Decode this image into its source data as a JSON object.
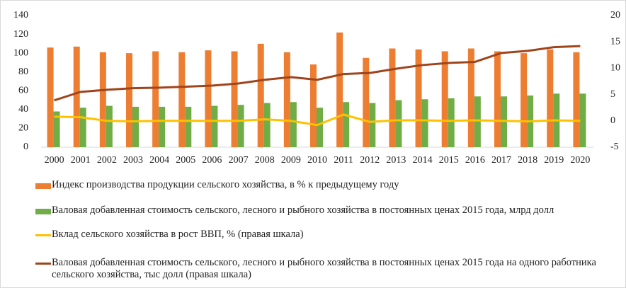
{
  "chart_data": {
    "type": "bar",
    "categories": [
      "2000",
      "2001",
      "2002",
      "2003",
      "2004",
      "2005",
      "2006",
      "2007",
      "2008",
      "2009",
      "2010",
      "2011",
      "2012",
      "2013",
      "2014",
      "2015",
      "2016",
      "2017",
      "2018",
      "2019",
      "2020"
    ],
    "series": [
      {
        "name": "Индекс производства продукции сельского хозяйства, в % к предыдущему году",
        "color": "#ed7d31",
        "type": "bar",
        "values": [
          106,
          107,
          101,
          100,
          102,
          101,
          103,
          102,
          110,
          101,
          88,
          122,
          95,
          105,
          104,
          102,
          105,
          102,
          100,
          104,
          101
        ]
      },
      {
        "name": "Валовая добавленная стоимость сельского,  лесного и рыбного хозяйства в постоянных ценах 2015 года, млрд долл",
        "color": "#70ad47",
        "type": "bar",
        "values": [
          38,
          42,
          44,
          43,
          43,
          43,
          44,
          45,
          47,
          48,
          42,
          48,
          47,
          50,
          51,
          52,
          54,
          54,
          55,
          57,
          57
        ]
      },
      {
        "name": "Вклад сельского хозяйства в рост ВВП, % (правая шкала)",
        "color": "#ffc000",
        "type": "line",
        "axis": "y2",
        "values": [
          0.8,
          0.7,
          0,
          -0.1,
          0,
          0,
          0,
          0,
          0.3,
          0,
          -0.8,
          1.2,
          -0.2,
          0.1,
          0.1,
          0,
          0.1,
          0,
          -0.1,
          0.1,
          0
        ]
      },
      {
        "name": "Валовая добавленная стоимость сельского, лесного и рыбного хозяйства в постоянных ценах 2015 года на одного работника сельского хозяйства, тыс долл (правая шкала)",
        "color": "#a0441c",
        "type": "line",
        "axis": "y2",
        "values": [
          3.9,
          5.5,
          5.9,
          6.2,
          6.3,
          6.5,
          6.7,
          7.1,
          7.8,
          8.3,
          7.8,
          8.9,
          9.1,
          9.9,
          10.6,
          11.0,
          11.2,
          12.9,
          13.3,
          14.0,
          14.2
        ]
      }
    ],
    "ylim": [
      0,
      140
    ],
    "yticks": [
      0,
      20,
      40,
      60,
      80,
      100,
      120,
      140
    ],
    "y2lim": [
      -5,
      20
    ],
    "y2ticks": [
      -5,
      0,
      5,
      10,
      15,
      20
    ]
  }
}
